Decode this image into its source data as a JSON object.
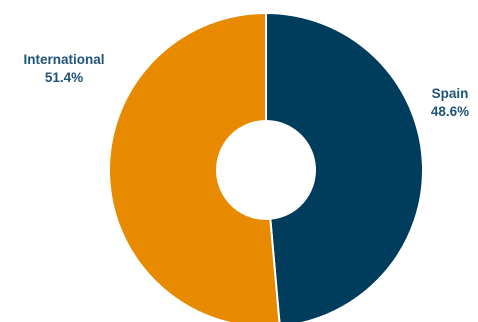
{
  "chart_data": {
    "type": "pie",
    "donut": true,
    "slices": [
      {
        "label": "Spain",
        "percent_text": "48.6%",
        "value": 48.6,
        "color": "#003d5c"
      },
      {
        "label": "International",
        "percent_text": "51.4%",
        "value": 51.4,
        "color": "#e88a00"
      }
    ],
    "label_color": "#1f5478",
    "start_angle_deg": 0,
    "direction": "clockwise"
  }
}
